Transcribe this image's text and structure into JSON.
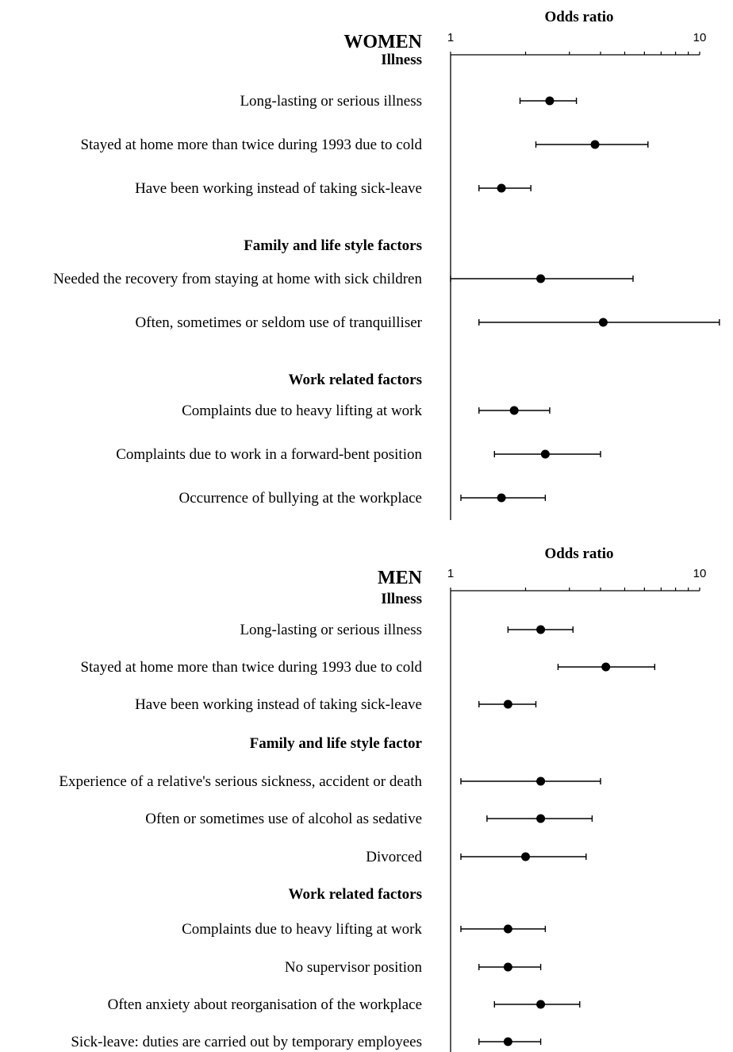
{
  "chart_data": [
    {
      "type": "forest",
      "title": "WOMEN",
      "xlabel": "Odds ratio",
      "xscale": "log",
      "xlim": [
        1,
        10
      ],
      "ticks": [
        "1",
        "10"
      ],
      "groups": [
        {
          "heading": "Illness",
          "items": [
            {
              "label": "Long-lasting or serious illness",
              "or": 2.5,
              "lo": 1.9,
              "hi": 3.2
            },
            {
              "label": "Stayed at home more than twice during 1993 due to cold",
              "or": 3.8,
              "lo": 2.2,
              "hi": 6.2
            },
            {
              "label": "Have been working instead of taking sick-leave",
              "or": 1.6,
              "lo": 1.3,
              "hi": 2.1
            }
          ]
        },
        {
          "heading": "Family and life style factors",
          "items": [
            {
              "label": "Needed the recovery from staying at home with sick children",
              "or": 2.3,
              "lo": 1.0,
              "hi": 5.4
            },
            {
              "label": "Often, sometimes or seldom use of tranquilliser",
              "or": 4.1,
              "lo": 1.3,
              "hi": 12.0
            }
          ]
        },
        {
          "heading": "Work related factors",
          "items": [
            {
              "label": "Complaints due to heavy lifting at work",
              "or": 1.8,
              "lo": 1.3,
              "hi": 2.5
            },
            {
              "label": "Complaints due to work in a forward-bent position",
              "or": 2.4,
              "lo": 1.5,
              "hi": 4.0
            },
            {
              "label": "Occurrence of bullying at the workplace",
              "or": 1.6,
              "lo": 1.1,
              "hi": 2.4
            }
          ]
        }
      ]
    },
    {
      "type": "forest",
      "title": "MEN",
      "xlabel": "Odds ratio",
      "xscale": "log",
      "xlim": [
        1,
        10
      ],
      "ticks": [
        "1",
        "10"
      ],
      "groups": [
        {
          "heading": "Illness",
          "items": [
            {
              "label": "Long-lasting or serious illness",
              "or": 2.3,
              "lo": 1.7,
              "hi": 3.1
            },
            {
              "label": "Stayed at home more than twice during 1993 due to cold",
              "or": 4.2,
              "lo": 2.7,
              "hi": 6.6
            },
            {
              "label": "Have been working instead of taking sick-leave",
              "or": 1.7,
              "lo": 1.3,
              "hi": 2.2
            }
          ]
        },
        {
          "heading": "Family and life style factor",
          "items": [
            {
              "label": "Experience of a relative's serious sickness, accident or death",
              "or": 2.3,
              "lo": 1.1,
              "hi": 4.0
            },
            {
              "label": "Often or sometimes use of alcohol as sedative",
              "or": 2.3,
              "lo": 1.4,
              "hi": 3.7
            },
            {
              "label": "Divorced",
              "or": 2.0,
              "lo": 1.1,
              "hi": 3.5
            }
          ]
        },
        {
          "heading": "Work related factors",
          "items": [
            {
              "label": "Complaints due to heavy lifting at work",
              "or": 1.7,
              "lo": 1.1,
              "hi": 2.4
            },
            {
              "label": "No supervisor position",
              "or": 1.7,
              "lo": 1.3,
              "hi": 2.3
            },
            {
              "label": "Often anxiety about reorganisation of the workplace",
              "or": 2.3,
              "lo": 1.5,
              "hi": 3.3
            },
            {
              "label": "Sick-leave: duties are carried out by temporary employees",
              "or": 1.7,
              "lo": 1.3,
              "hi": 2.3
            }
          ]
        }
      ]
    }
  ]
}
